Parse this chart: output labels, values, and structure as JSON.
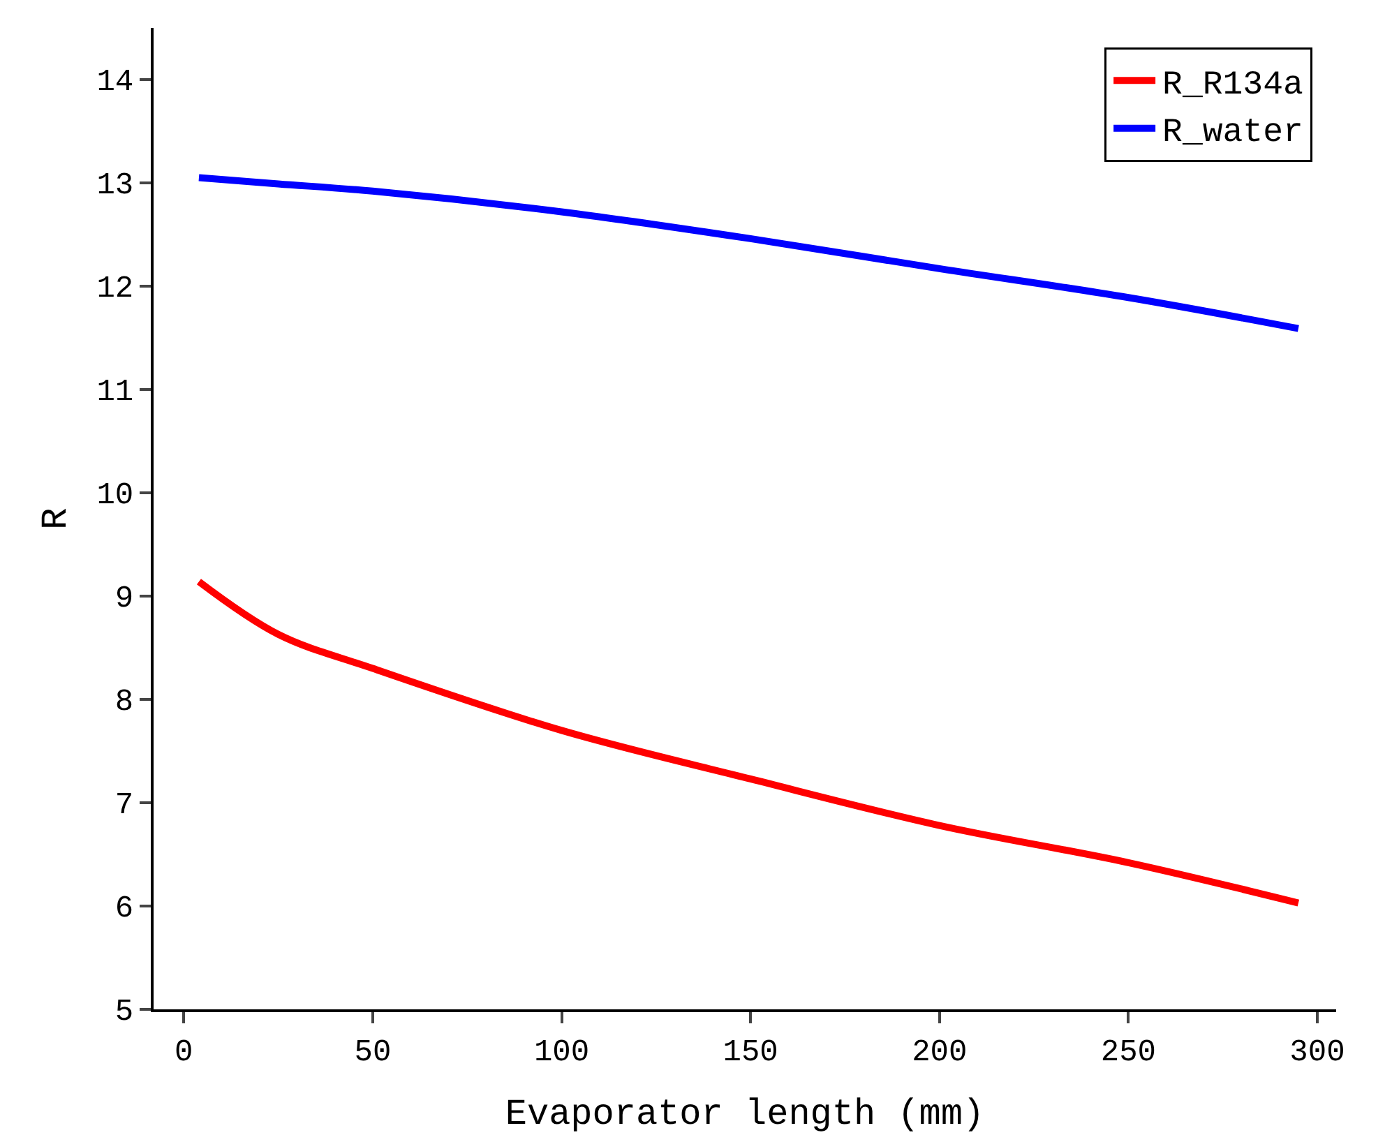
{
  "chart_data": {
    "type": "line",
    "xlabel": "Evaporator length (mm)",
    "ylabel": "R",
    "x": [
      4,
      25,
      50,
      100,
      150,
      200,
      250,
      295
    ],
    "series": [
      {
        "name": "R_R134a",
        "color": "#ff0000",
        "values": [
          9.14,
          8.63,
          8.3,
          7.7,
          7.23,
          6.78,
          6.42,
          6.03
        ]
      },
      {
        "name": "R_water",
        "color": "#0000ff",
        "values": [
          13.05,
          12.99,
          12.92,
          12.72,
          12.46,
          12.17,
          11.89,
          11.59
        ]
      }
    ],
    "xlim": [
      -8,
      305
    ],
    "xticks": [
      0,
      50,
      100,
      150,
      200,
      250,
      300
    ],
    "ylim": [
      5,
      14.5
    ],
    "yticks": [
      5,
      6,
      7,
      8,
      9,
      10,
      11,
      12,
      13,
      14
    ],
    "grid": false,
    "legend": "top right",
    "marker": "none",
    "line_style": "solid"
  }
}
